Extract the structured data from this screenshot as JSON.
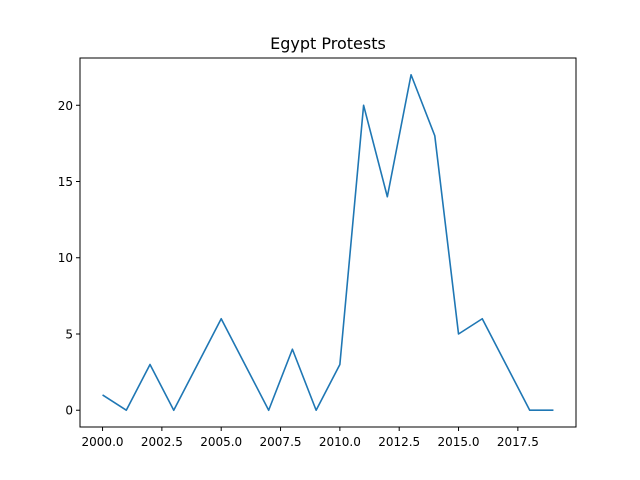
{
  "chart_data": {
    "type": "line",
    "title": "Egypt Protests",
    "xlabel": "",
    "ylabel": "",
    "x": [
      2000,
      2001,
      2002,
      2003,
      2004,
      2005,
      2006,
      2007,
      2008,
      2009,
      2010,
      2011,
      2012,
      2013,
      2014,
      2015,
      2016,
      2017,
      2018,
      2019
    ],
    "series": [
      {
        "color": "#1f77b4",
        "values": [
          1,
          0,
          3,
          0,
          3,
          6,
          3,
          0,
          4,
          0,
          3,
          20,
          14,
          22,
          18,
          5,
          6,
          3,
          0,
          0
        ]
      }
    ],
    "xlim": [
      1999.05,
      2019.95
    ],
    "ylim": [
      -1.1,
      23.1
    ],
    "xticks": [
      2000,
      2002.5,
      2005,
      2007.5,
      2010,
      2012.5,
      2015,
      2017.5
    ],
    "xtick_labels": [
      "2000.0",
      "2002.5",
      "2005.0",
      "2007.5",
      "2010.0",
      "2012.5",
      "2015.0",
      "2017.5"
    ],
    "yticks": [
      0,
      5,
      10,
      15,
      20
    ],
    "ytick_labels": [
      "0",
      "5",
      "10",
      "15",
      "20"
    ],
    "grid": false,
    "legend": "none"
  }
}
